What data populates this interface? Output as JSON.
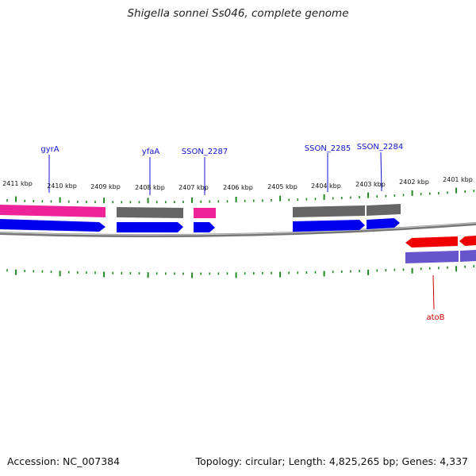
{
  "title": "Shigella sonnei Ss046, complete genome",
  "footer": {
    "accession": "Accession: NC_007384",
    "stats": "Topology: circular; Length: 4,825,265 bp; Genes: 4,337"
  },
  "ruler_labels": [
    "2411 kbp",
    "2410 kbp",
    "2409 kbp",
    "2408 kbp",
    "2407 kbp",
    "2406 kbp",
    "2405 kbp",
    "2404 kbp",
    "2403 kbp",
    "2402 kbp",
    "2401 kbp"
  ],
  "genes": [
    {
      "name": "gyrA",
      "strand": "forward",
      "color": "#1010cc"
    },
    {
      "name": "yfaA",
      "strand": "forward",
      "color": "#1010cc"
    },
    {
      "name": "SSON_2287",
      "strand": "forward",
      "color": "#1010cc"
    },
    {
      "name": "SSON_2285",
      "strand": "forward",
      "color": "#1010cc"
    },
    {
      "name": "SSON_2284",
      "strand": "forward",
      "color": "#1010cc"
    },
    {
      "name": "atoB",
      "strand": "reverse",
      "color": "#cc0000"
    }
  ],
  "colors": {
    "cds_forward": "#0000ee",
    "cds_reverse": "#ee0000",
    "feature_pink": "#ee2299",
    "feature_gray": "#666666",
    "feature_purple": "#6655cc",
    "backbone": "#777777",
    "ticks": "#228822"
  }
}
